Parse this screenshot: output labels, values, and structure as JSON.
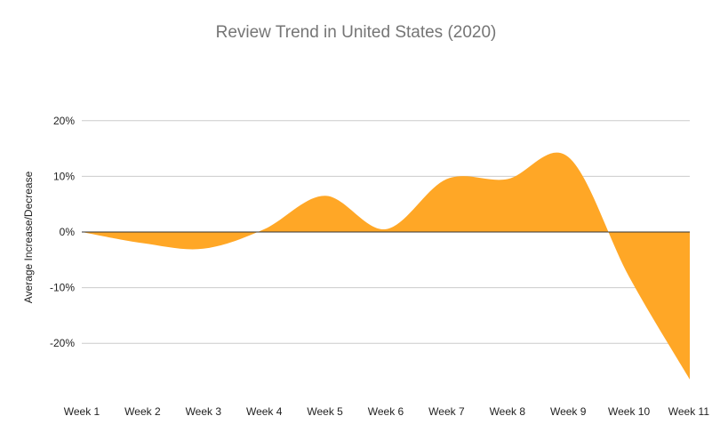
{
  "chart_data": {
    "type": "area",
    "title": "Review Trend in United States (2020)",
    "xlabel": "",
    "ylabel": "Average Increase/Decrease",
    "categories": [
      "Week 1",
      "Week 2",
      "Week 3",
      "Week 4",
      "Week 5",
      "Week 6",
      "Week 7",
      "Week 8",
      "Week 9",
      "Week 10",
      "Week 11"
    ],
    "series": [
      {
        "values": [
          0,
          -2,
          -3,
          0.5,
          6.5,
          0.5,
          9.5,
          9.5,
          13.5,
          -8,
          -26.5
        ]
      }
    ],
    "y_ticks": [
      {
        "value": 20,
        "label": "20%"
      },
      {
        "value": 10,
        "label": "10%"
      },
      {
        "value": 0,
        "label": "0%"
      },
      {
        "value": -10,
        "label": "-10%"
      },
      {
        "value": -20,
        "label": "-20%"
      }
    ],
    "ylim": [
      -27,
      20
    ],
    "grid": true,
    "legend": "none",
    "colors": {
      "fill": "#ffa726",
      "gridline": "#cccccc",
      "zero_line": "#333333",
      "title": "#757575",
      "tick_label": "#222222"
    }
  }
}
